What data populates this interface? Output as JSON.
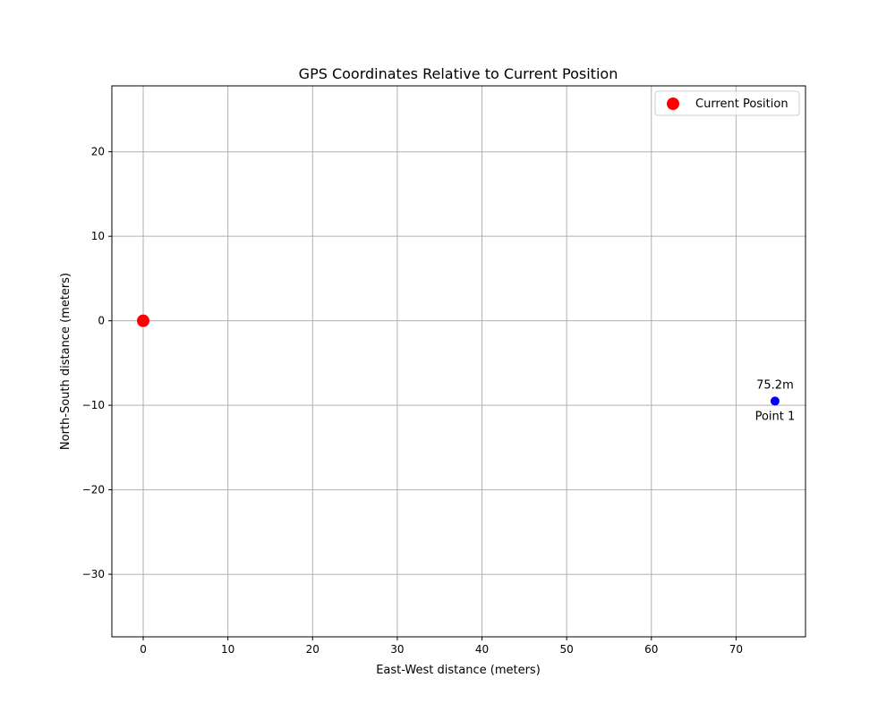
{
  "chart_data": {
    "type": "scatter",
    "title": "GPS Coordinates Relative to Current Position",
    "xlabel": "East-West distance (meters)",
    "ylabel": "North-South distance (meters)",
    "xlim": [
      -3.7,
      78.2
    ],
    "ylim": [
      -37.4,
      27.8
    ],
    "xticks": [
      0,
      10,
      20,
      30,
      40,
      50,
      60,
      70
    ],
    "yticks": [
      20,
      10,
      0,
      -10,
      -20,
      -30
    ],
    "grid": true,
    "legend": {
      "position": "top-right",
      "entries": [
        "Current Position"
      ]
    },
    "series": [
      {
        "name": "Current Position",
        "color": "#ff0000",
        "points": [
          {
            "x": 0,
            "y": 0
          }
        ]
      }
    ],
    "points": [
      {
        "label": "Point 1",
        "distance_label": "75.2m",
        "x": 74.6,
        "y": -9.5,
        "color": "#0000ff"
      }
    ]
  }
}
